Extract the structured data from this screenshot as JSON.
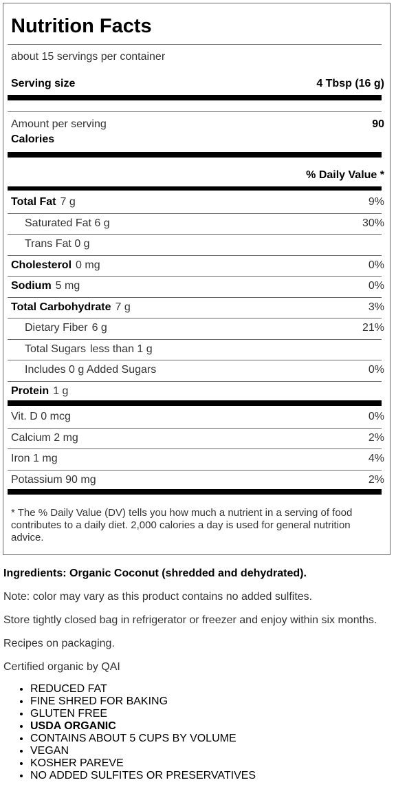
{
  "panel": {
    "title": "Nutrition Facts",
    "servings_per_container": "about 15 servings per container",
    "serving_size_label": "Serving size",
    "serving_size_value": "4 Tbsp (16 g)",
    "amount_per_serving": "Amount per serving",
    "calories_label": "Calories",
    "calories_value": "90",
    "daily_value_header": "% Daily Value *",
    "nutrients": [
      {
        "name": "Total Fat",
        "amount": "7 g",
        "dv": "9%",
        "bold": true,
        "indent": false
      },
      {
        "name": "Saturated Fat 6 g",
        "amount": "",
        "dv": "30%",
        "bold": false,
        "indent": true
      },
      {
        "name": "Trans Fat 0 g",
        "amount": "",
        "dv": "",
        "bold": false,
        "indent": true
      },
      {
        "name": "Cholesterol",
        "amount": "0 mg",
        "dv": "0%",
        "bold": true,
        "indent": false
      },
      {
        "name": "Sodium",
        "amount": "5 mg",
        "dv": "0%",
        "bold": true,
        "indent": false
      },
      {
        "name": "Total Carbohydrate",
        "amount": "7 g",
        "dv": "3%",
        "bold": true,
        "indent": false
      },
      {
        "name": "Dietary Fiber",
        "amount": "6 g",
        "dv": "21%",
        "bold": false,
        "indent": true
      },
      {
        "name": "Total Sugars",
        "amount": "less than 1 g",
        "dv": "",
        "bold": false,
        "indent": true
      },
      {
        "name": "Includes 0 g Added Sugars",
        "amount": "",
        "dv": "0%",
        "bold": false,
        "indent": true
      },
      {
        "name": "Protein",
        "amount": "1 g",
        "dv": "",
        "bold": true,
        "indent": false
      }
    ],
    "vitamins": [
      {
        "name": "Vit. D 0 mcg",
        "dv": "0%"
      },
      {
        "name": "Calcium 2 mg",
        "dv": "2%"
      },
      {
        "name": "Iron 1 mg",
        "dv": "4%"
      },
      {
        "name": "Potassium 90 mg",
        "dv": "2%"
      }
    ],
    "footnote": "* The % Daily Value (DV) tells you how much a nutrient in a serving of food contributes to a daily diet. 2,000 calories a day is used for general nutrition advice."
  },
  "ingredients": "Ingredients: Organic Coconut (shredded and dehydrated).",
  "notes": [
    "Note: color may vary as this product contains no added sulfites.",
    "Store tightly closed bag in refrigerator or freezer and enjoy within six months.",
    "Recipes on packaging.",
    "Certified organic by QAI"
  ],
  "claims": [
    "REDUCED FAT",
    "FINE SHRED FOR BAKING",
    "GLUTEN FREE",
    "USDA ORGANIC",
    "CONTAINS ABOUT 5 CUPS BY VOLUME",
    "VEGAN",
    "KOSHER PAREVE",
    "NO ADDED SULFITES OR PRESERVATIVES"
  ]
}
